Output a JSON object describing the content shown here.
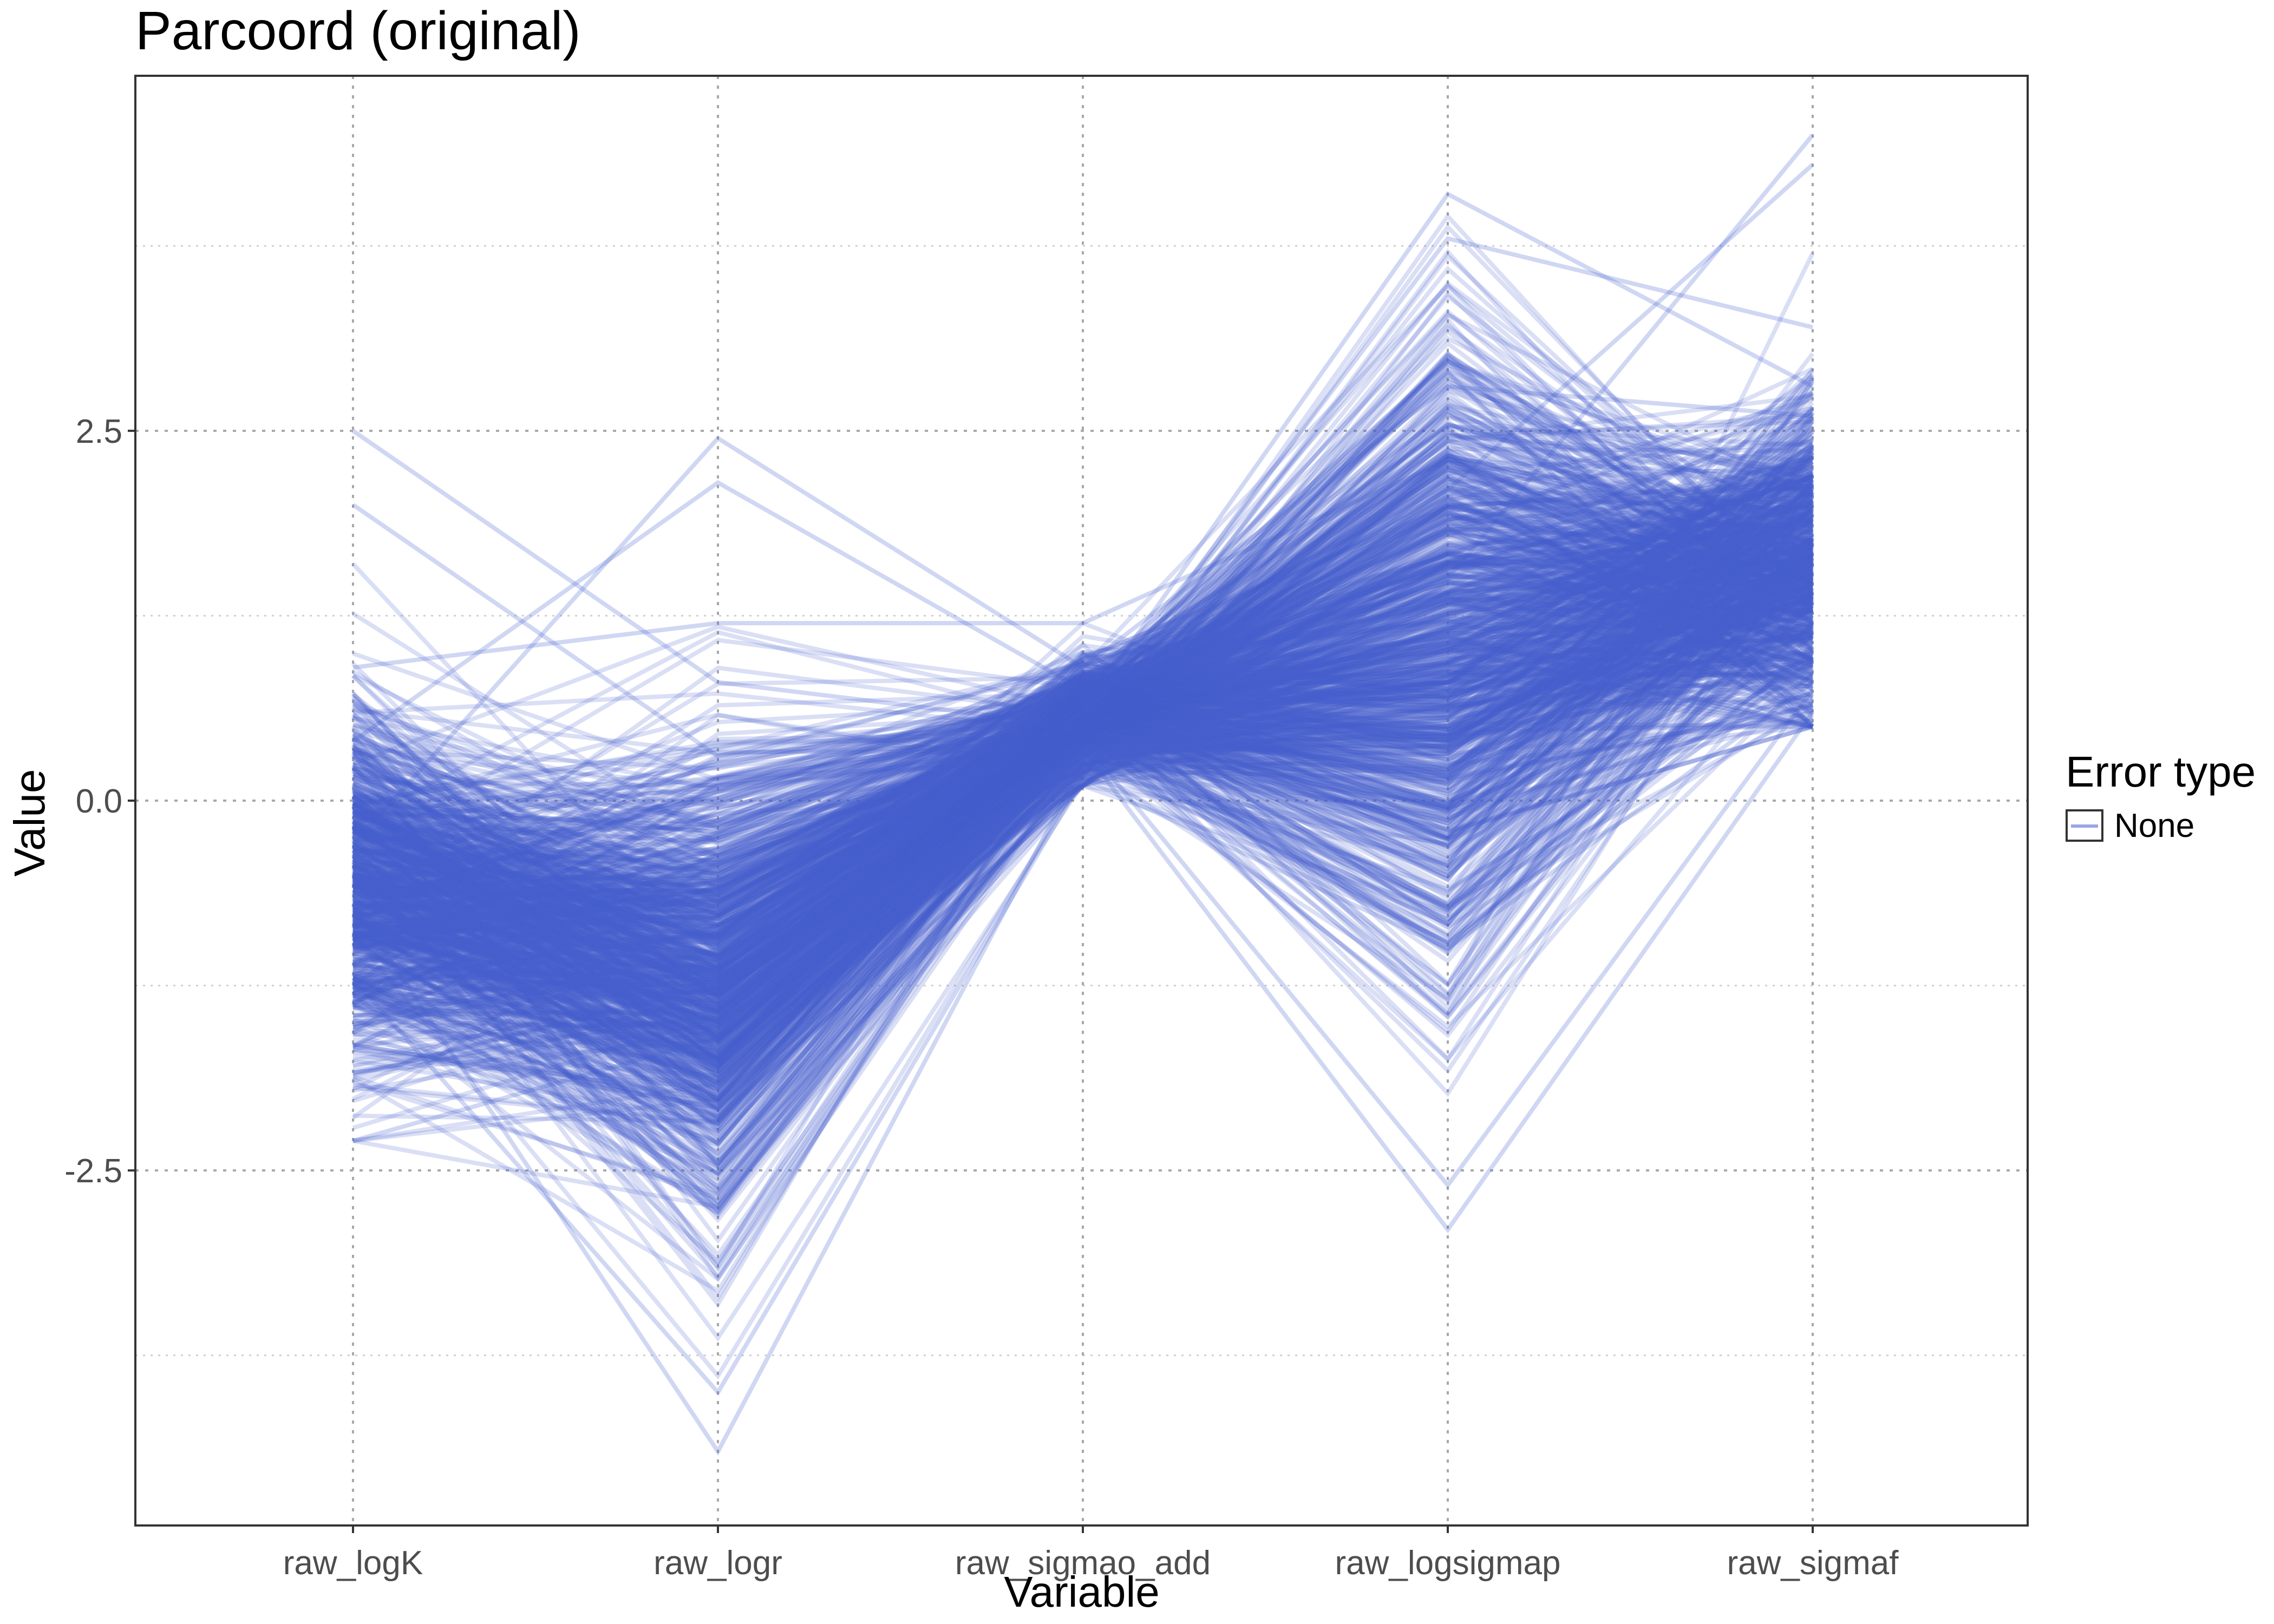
{
  "chart_data": {
    "type": "line",
    "title": "Parcoord (original)",
    "xlabel": "Variable",
    "ylabel": "Value",
    "categories": [
      "raw_logK",
      "raw_logr",
      "raw_sigmao_add",
      "raw_logsigmap",
      "raw_sigmaf"
    ],
    "ylim": [
      -4.9,
      4.9
    ],
    "y_ticks": [
      {
        "value": 2.5,
        "label": "2.5"
      },
      {
        "value": 0.0,
        "label": "0.0"
      },
      {
        "value": -2.5,
        "label": "-2.5"
      }
    ],
    "grid": true,
    "legend": {
      "title": "Error type",
      "entries": [
        "None"
      ],
      "position": "right"
    },
    "series_color": "#4560CF",
    "distribution": {
      "raw_logK": {
        "mean": -0.55,
        "sd": 0.6,
        "min": -2.3,
        "max": 2.5
      },
      "raw_logr": {
        "mean": -1.25,
        "sd": 0.75,
        "min": -4.4,
        "max": 2.45
      },
      "raw_sigmao_add": {
        "mean": 0.55,
        "sd": 0.2,
        "min": 0.1,
        "max": 1.2
      },
      "raw_logsigmap": {
        "mean": 1.0,
        "sd": 1.0,
        "min": -2.9,
        "max": 4.1
      },
      "raw_sigmaf": {
        "mean": 1.6,
        "sd": 0.55,
        "min": 0.5,
        "max": 4.5
      }
    },
    "extreme_lines": [
      [
        2.5,
        0.8,
        0.5,
        1.4,
        1.7
      ],
      [
        -0.3,
        2.45,
        0.9,
        2.0,
        1.5
      ],
      [
        0.4,
        2.15,
        0.75,
        1.6,
        1.9
      ],
      [
        -0.7,
        -4.4,
        0.25,
        -0.6,
        0.9
      ],
      [
        -1.2,
        -4.0,
        0.15,
        -1.0,
        0.8
      ],
      [
        -0.1,
        -0.8,
        0.6,
        4.1,
        2.8
      ],
      [
        0.3,
        -1.0,
        0.55,
        3.8,
        3.2
      ],
      [
        -0.9,
        -1.5,
        0.35,
        -2.9,
        0.6
      ],
      [
        -0.5,
        -1.2,
        0.4,
        -2.6,
        0.75
      ],
      [
        -0.2,
        -0.9,
        0.6,
        1.5,
        4.5
      ],
      [
        0.1,
        -1.1,
        0.7,
        2.1,
        4.3
      ],
      [
        -2.3,
        -1.6,
        0.3,
        -0.8,
        1.0
      ],
      [
        2.0,
        0.3,
        0.9,
        2.8,
        2.6
      ],
      [
        0.9,
        1.2,
        1.2,
        2.3,
        2.2
      ]
    ]
  }
}
